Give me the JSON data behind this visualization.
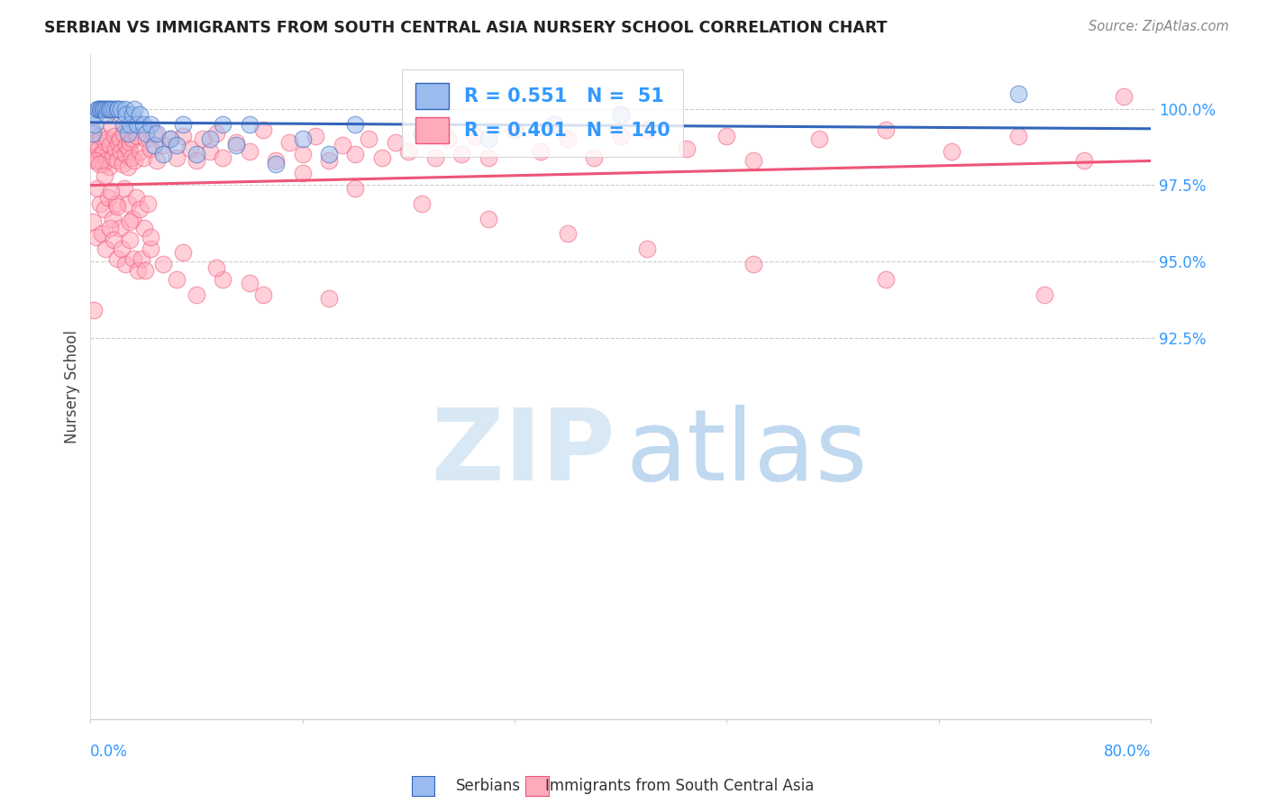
{
  "title": "SERBIAN VS IMMIGRANTS FROM SOUTH CENTRAL ASIA NURSERY SCHOOL CORRELATION CHART",
  "source": "Source: ZipAtlas.com",
  "ylabel": "Nursery School",
  "xmin": 0.0,
  "xmax": 80.0,
  "ymin": 80.0,
  "ymax": 101.8,
  "serbian_R": 0.551,
  "serbian_N": 51,
  "immigrant_R": 0.401,
  "immigrant_N": 140,
  "blue_color": "#99BBEE",
  "pink_color": "#FFAABB",
  "blue_line_color": "#3366BB",
  "pink_line_color": "#EE5577",
  "legend_R_color": "#3399FF",
  "figsize": [
    14.06,
    8.92
  ],
  "dpi": 100,
  "serbian_x": [
    0.2,
    0.3,
    0.4,
    0.5,
    0.6,
    0.7,
    0.8,
    0.9,
    1.0,
    1.1,
    1.2,
    1.3,
    1.4,
    1.5,
    1.6,
    1.8,
    2.0,
    2.1,
    2.3,
    2.5,
    2.6,
    2.7,
    2.8,
    3.0,
    3.2,
    3.3,
    3.5,
    3.7,
    4.0,
    4.2,
    4.5,
    4.8,
    5.0,
    5.5,
    6.0,
    6.5,
    7.0,
    8.0,
    9.0,
    10.0,
    11.0,
    12.0,
    14.0,
    16.0,
    18.0,
    20.0,
    25.0,
    30.0,
    35.0,
    40.0,
    70.0
  ],
  "serbian_y": [
    99.2,
    99.5,
    99.8,
    100.0,
    100.0,
    100.0,
    100.0,
    100.0,
    100.0,
    100.0,
    99.8,
    100.0,
    100.0,
    100.0,
    100.0,
    100.0,
    100.0,
    100.0,
    100.0,
    99.5,
    100.0,
    99.8,
    99.2,
    99.5,
    99.8,
    100.0,
    99.5,
    99.8,
    99.5,
    99.2,
    99.5,
    98.8,
    99.2,
    98.5,
    99.0,
    98.8,
    99.5,
    98.5,
    99.0,
    99.5,
    98.8,
    99.5,
    98.2,
    99.0,
    98.5,
    99.5,
    99.2,
    99.0,
    99.5,
    99.8,
    100.5
  ],
  "immigrant_x": [
    0.1,
    0.2,
    0.3,
    0.4,
    0.5,
    0.6,
    0.7,
    0.8,
    0.9,
    1.0,
    1.1,
    1.2,
    1.3,
    1.4,
    1.5,
    1.6,
    1.7,
    1.8,
    1.9,
    2.0,
    2.1,
    2.2,
    2.3,
    2.4,
    2.5,
    2.6,
    2.7,
    2.8,
    2.9,
    3.0,
    3.1,
    3.2,
    3.3,
    3.5,
    3.7,
    4.0,
    4.2,
    4.5,
    4.8,
    5.0,
    5.5,
    6.0,
    6.5,
    7.0,
    7.5,
    8.0,
    8.5,
    9.0,
    9.5,
    10.0,
    11.0,
    12.0,
    13.0,
    14.0,
    15.0,
    16.0,
    17.0,
    18.0,
    19.0,
    20.0,
    21.0,
    22.0,
    23.0,
    24.0,
    25.0,
    26.0,
    27.0,
    28.0,
    29.0,
    30.0,
    32.0,
    34.0,
    36.0,
    38.0,
    40.0,
    42.0,
    45.0,
    48.0,
    50.0,
    55.0,
    60.0,
    65.0,
    70.0,
    75.0,
    78.0,
    0.35,
    0.55,
    0.75,
    1.05,
    1.35,
    1.65,
    1.95,
    2.25,
    2.55,
    2.85,
    3.15,
    3.45,
    3.75,
    4.05,
    4.35,
    0.15,
    0.45,
    0.85,
    1.15,
    1.45,
    1.75,
    2.05,
    2.35,
    2.65,
    2.95,
    3.25,
    3.55,
    3.85,
    4.15,
    4.55,
    5.5,
    6.5,
    8.0,
    10.0,
    13.0,
    16.0,
    20.0,
    25.0,
    30.0,
    36.0,
    42.0,
    50.0,
    60.0,
    72.0,
    0.25,
    0.65,
    1.05,
    1.55,
    2.05,
    3.0,
    4.5,
    7.0,
    9.5,
    12.0,
    18.0
  ],
  "immigrant_y": [
    99.3,
    98.7,
    98.4,
    98.9,
    98.3,
    98.7,
    99.1,
    98.5,
    98.2,
    98.6,
    98.9,
    98.3,
    99.0,
    98.1,
    98.8,
    99.4,
    98.4,
    99.1,
    98.7,
    98.3,
    98.9,
    99.0,
    98.6,
    98.2,
    99.2,
    98.5,
    98.8,
    98.1,
    98.7,
    98.9,
    98.4,
    99.0,
    98.3,
    99.1,
    98.6,
    98.4,
    99.0,
    98.7,
    99.2,
    98.3,
    98.8,
    99.0,
    98.4,
    99.1,
    98.7,
    98.3,
    99.0,
    98.6,
    99.2,
    98.4,
    98.9,
    98.6,
    99.3,
    98.3,
    98.9,
    98.5,
    99.1,
    98.3,
    98.8,
    98.5,
    99.0,
    98.4,
    98.9,
    98.6,
    99.2,
    98.4,
    99.0,
    98.5,
    99.1,
    98.4,
    99.3,
    98.6,
    99.0,
    98.4,
    99.1,
    99.3,
    98.7,
    99.1,
    98.3,
    99.0,
    99.3,
    98.6,
    99.1,
    98.3,
    100.4,
    98.3,
    97.4,
    96.9,
    96.7,
    97.1,
    96.4,
    96.9,
    96.1,
    97.4,
    96.9,
    96.4,
    97.1,
    96.7,
    96.1,
    96.9,
    96.3,
    95.8,
    95.9,
    95.4,
    96.1,
    95.7,
    95.1,
    95.4,
    94.9,
    95.7,
    95.1,
    94.7,
    95.1,
    94.7,
    95.4,
    94.9,
    94.4,
    93.9,
    94.4,
    93.9,
    97.9,
    97.4,
    96.9,
    96.4,
    95.9,
    95.4,
    94.9,
    94.4,
    93.9,
    93.4,
    98.2,
    97.8,
    97.3,
    96.8,
    96.3,
    95.8,
    95.3,
    94.8,
    94.3,
    93.8
  ]
}
